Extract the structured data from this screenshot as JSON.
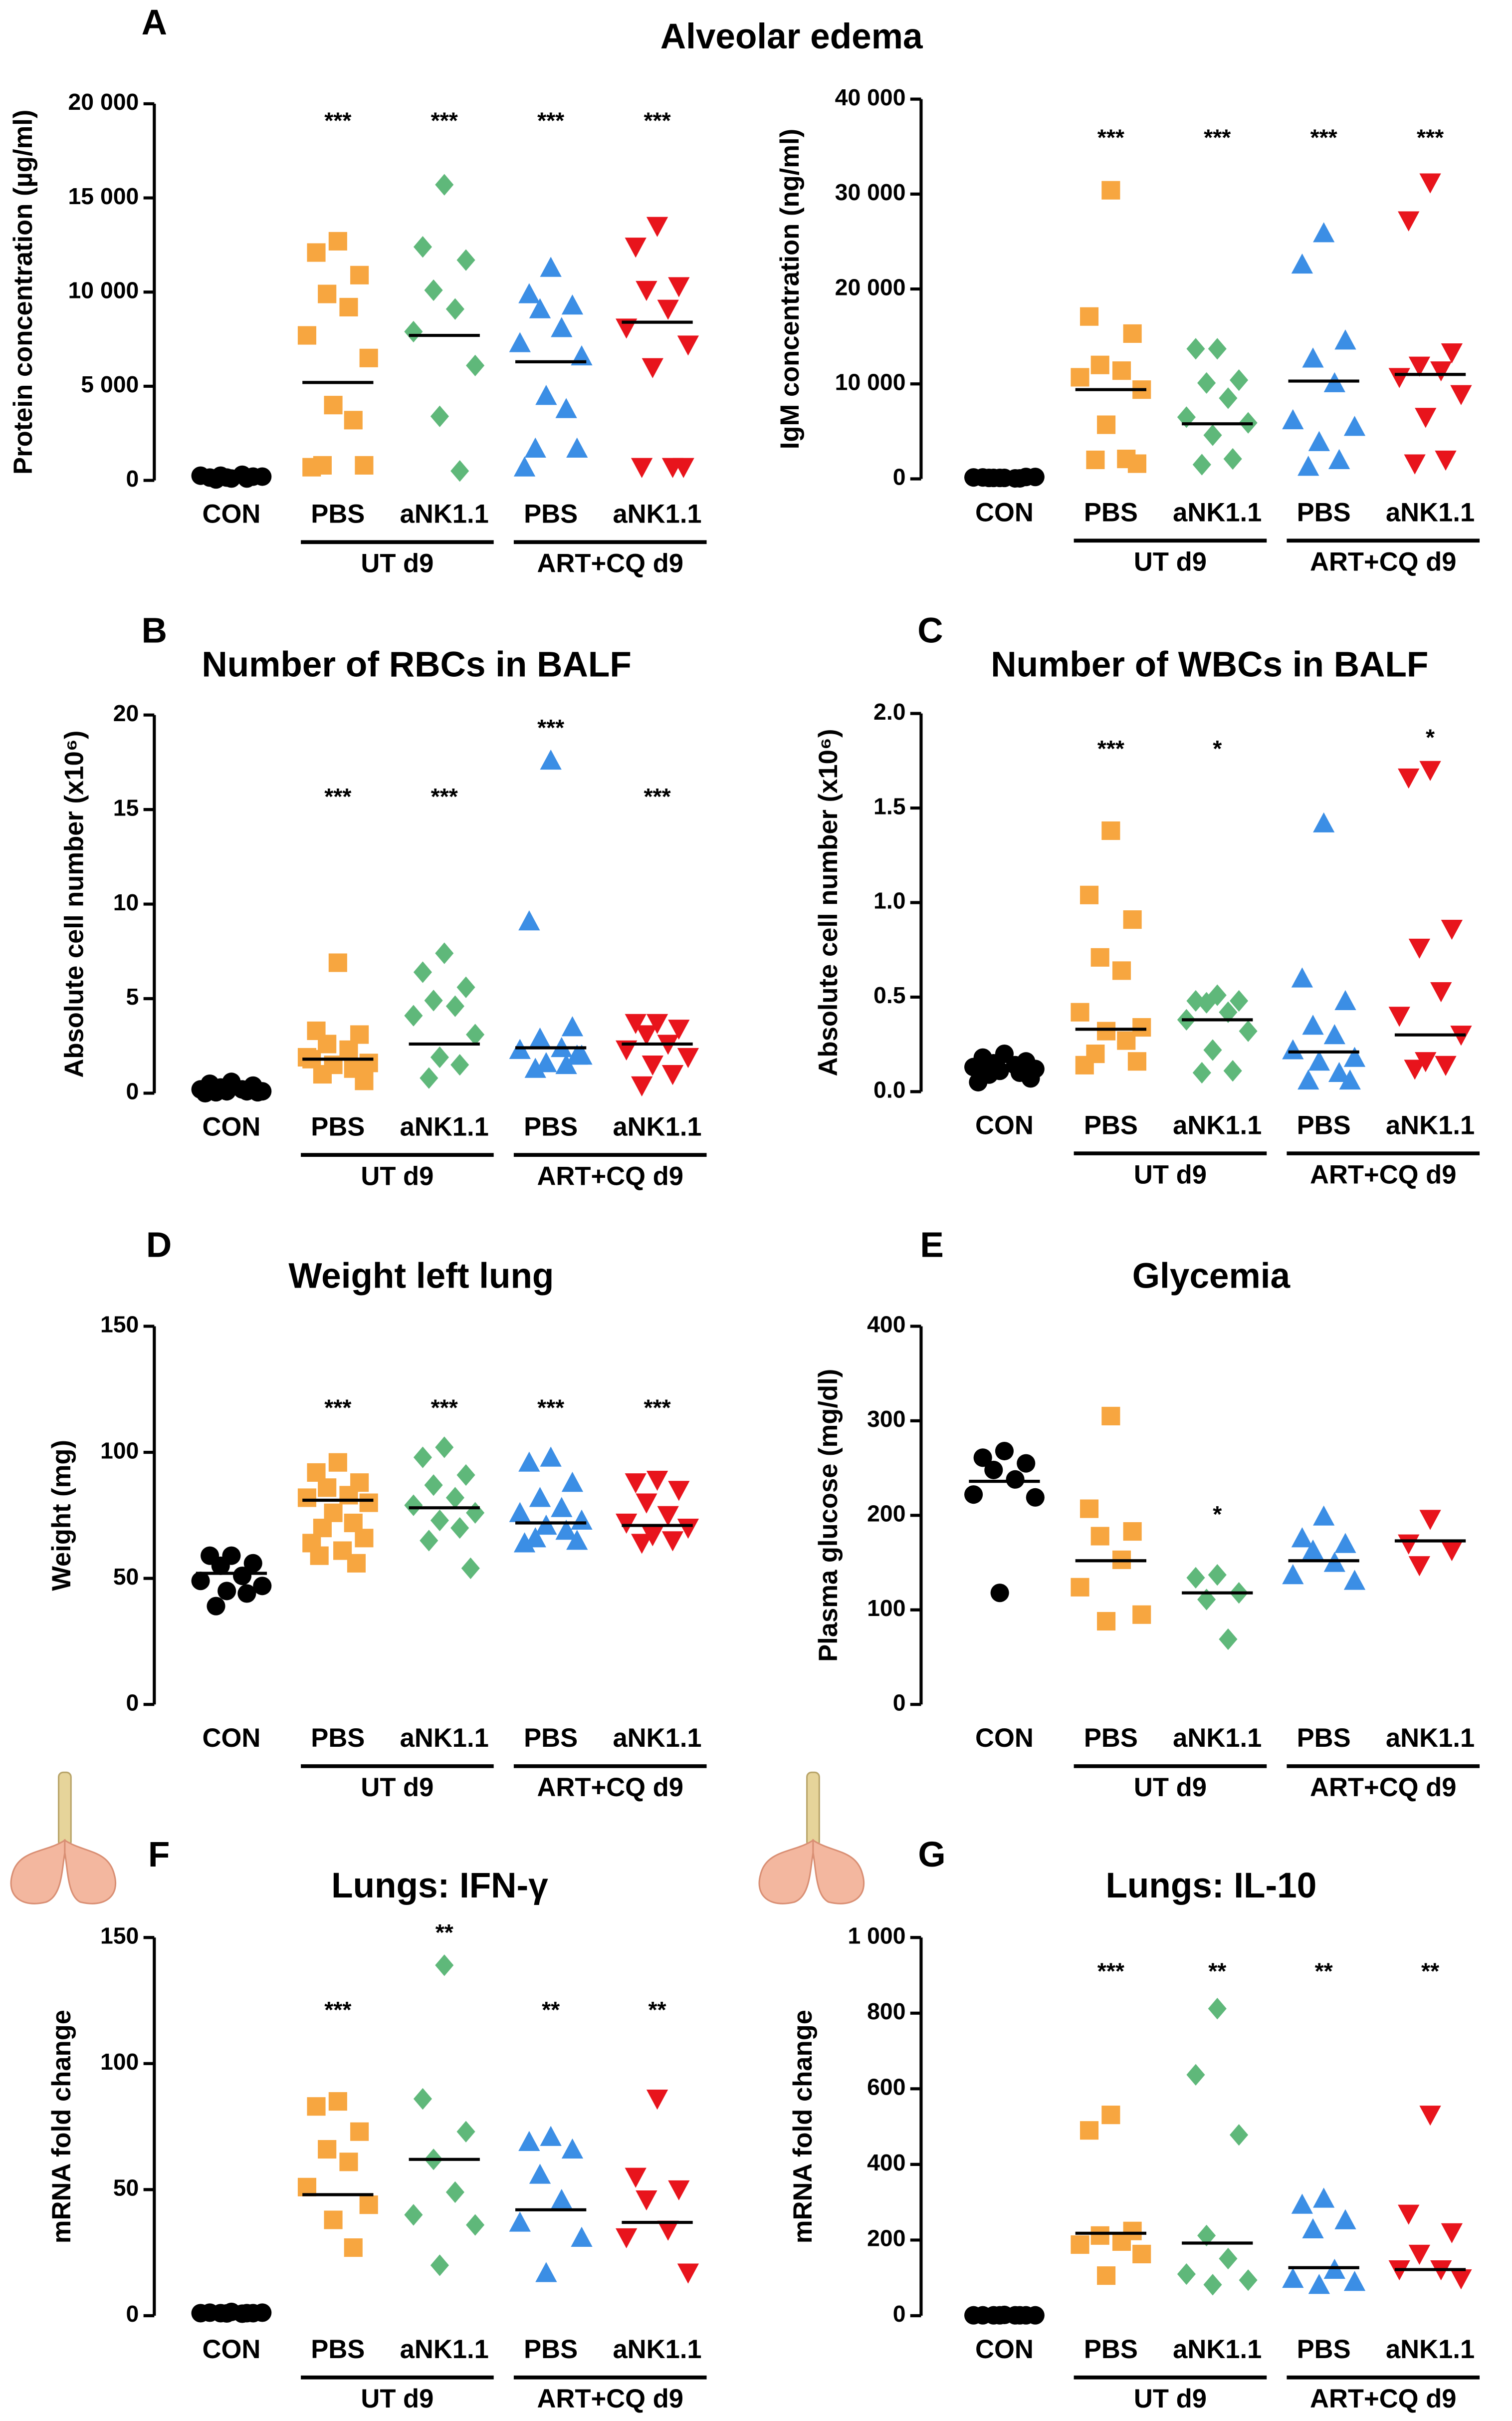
{
  "chart_data": [
    {
      "type": "dot",
      "panel": "A",
      "title": "Alveolar edema",
      "ylabel": "Protein concentration (µg/ml)",
      "categories": [
        "CON",
        "PBS",
        "aNK1.1",
        "PBS",
        "aNK1.1"
      ],
      "groups": [
        "UT d9",
        "ART+CQ d9"
      ],
      "colors": [
        "#000000",
        "#f7a640",
        "#5fb87a",
        "#3b8ee5",
        "#e8141c"
      ],
      "markers": [
        "circle",
        "square",
        "diamond",
        "triangle",
        "triangle-down"
      ],
      "values": [
        [
          100,
          150,
          200,
          250,
          300,
          250,
          200,
          150,
          100,
          50
        ],
        [
          12700,
          12100,
          10900,
          9900,
          9200,
          7700,
          6500,
          4000,
          3200,
          800,
          800,
          700
        ],
        [
          15700,
          12400,
          11700,
          10100,
          9100,
          7900,
          6100,
          3400,
          500
        ],
        [
          11300,
          9900,
          9300,
          9100,
          8100,
          7300,
          6600,
          4500,
          3800,
          1700,
          1700,
          700
        ],
        [
          13500,
          12400,
          10300,
          10100,
          9100,
          8100,
          7200,
          6000,
          700,
          700,
          700
        ]
      ],
      "medians": [
        250,
        5200,
        7700,
        6300,
        8400
      ],
      "significance": [
        null,
        "***",
        "***",
        "***",
        "***"
      ],
      "ylim": [
        0,
        20000
      ],
      "yticks": [
        0,
        {
          "value": 5000,
          "label": "5 000"
        },
        {
          "value": 10000,
          "label": "10 000"
        },
        {
          "value": 15000,
          "label": "15 000"
        },
        {
          "value": 20000,
          "label": "20 000"
        }
      ]
    },
    {
      "type": "dot",
      "ylabel": "IgM concentration (ng/ml)",
      "categories": [
        "CON",
        "PBS",
        "aNK1.1",
        "PBS",
        "aNK1.1"
      ],
      "groups": [
        "UT d9",
        "ART+CQ d9"
      ],
      "colors": [
        "#000000",
        "#f7a640",
        "#5fb87a",
        "#3b8ee5",
        "#e8141c"
      ],
      "markers": [
        "circle",
        "square",
        "diamond",
        "triangle",
        "triangle-down"
      ],
      "values": [
        [
          100,
          150,
          200,
          100,
          50,
          150,
          200,
          100,
          50,
          100
        ],
        [
          30400,
          17100,
          15300,
          12000,
          11400,
          10700,
          9400,
          5700,
          2100,
          2000,
          1600
        ],
        [
          13700,
          13700,
          10400,
          10100,
          8500,
          6500,
          5900,
          4600,
          2100,
          1500
        ],
        [
          25900,
          22600,
          14600,
          12700,
          10100,
          6200,
          5500,
          3900,
          2000,
          1300
        ],
        [
          31200,
          27200,
          13300,
          11900,
          11400,
          10700,
          8900,
          6500,
          2000,
          1600
        ]
      ],
      "medians": [
        100,
        9400,
        5800,
        10300,
        11000
      ],
      "significance": [
        null,
        "***",
        "***",
        "***",
        "***"
      ],
      "ylim": [
        0,
        40000
      ],
      "yticks": [
        0,
        {
          "value": 10000,
          "label": "10 000"
        },
        {
          "value": 20000,
          "label": "20 000"
        },
        {
          "value": 30000,
          "label": "30 000"
        },
        {
          "value": 40000,
          "label": "40 000"
        }
      ]
    },
    {
      "type": "dot",
      "panel": "B",
      "title": "Number of RBCs in BALF",
      "ylabel": "Absolute cell number (x10⁶)",
      "categories": [
        "CON",
        "PBS",
        "aNK1.1",
        "PBS",
        "aNK1.1"
      ],
      "groups": [
        "UT d9",
        "ART+CQ d9"
      ],
      "colors": [
        "#000000",
        "#f7a640",
        "#5fb87a",
        "#3b8ee5",
        "#e8141c"
      ],
      "markers": [
        "circle",
        "square",
        "diamond",
        "triangle",
        "triangle-down"
      ],
      "values": [
        [
          0.6,
          0.5,
          0.4,
          0.3,
          0.2,
          0.2,
          0.1,
          0.1,
          0.1,
          0.05,
          0.05,
          0
        ],
        [
          6.9,
          3.3,
          3.1,
          2.6,
          2.3,
          1.9,
          1.6,
          1.5,
          1.3,
          1.0,
          0.65,
          1.8
        ],
        [
          7.4,
          6.4,
          5.6,
          4.9,
          4.6,
          4.1,
          3.1,
          1.9,
          1.5,
          0.8
        ],
        [
          17.6,
          9.1,
          3.5,
          2.9,
          2.4,
          2.3,
          2.0,
          1.6,
          1.5,
          1.3,
          2.0
        ],
        [
          3.7,
          3.7,
          3.4,
          3.1,
          2.6,
          2.3,
          1.9,
          1.5,
          1.0,
          0.4
        ]
      ],
      "medians": [
        0.2,
        1.8,
        2.6,
        2.4,
        2.6
      ],
      "significance": [
        null,
        "***",
        "***",
        "***",
        "***"
      ],
      "ylim": [
        0,
        20
      ],
      "yticks": [
        0,
        5,
        10,
        15,
        20
      ]
    },
    {
      "type": "dot",
      "panel": "C",
      "title": "Number of WBCs in BALF",
      "ylabel": "Absolute cell number (x10⁶)",
      "categories": [
        "CON",
        "PBS",
        "aNK1.1",
        "PBS",
        "aNK1.1"
      ],
      "groups": [
        "UT d9",
        "ART+CQ d9"
      ],
      "colors": [
        "#000000",
        "#f7a640",
        "#5fb87a",
        "#3b8ee5",
        "#e8141c"
      ],
      "markers": [
        "circle",
        "square",
        "diamond",
        "triangle",
        "triangle-down"
      ],
      "values": [
        [
          0.2,
          0.18,
          0.16,
          0.15,
          0.14,
          0.13,
          0.12,
          0.11,
          0.1,
          0.09,
          0.07,
          0.05
        ],
        [
          1.38,
          1.04,
          0.91,
          0.71,
          0.64,
          0.42,
          0.34,
          0.32,
          0.27,
          0.2,
          0.16,
          0.14
        ],
        [
          0.51,
          0.48,
          0.48,
          0.47,
          0.42,
          0.38,
          0.32,
          0.22,
          0.11,
          0.1
        ],
        [
          1.42,
          0.6,
          0.48,
          0.35,
          0.3,
          0.22,
          0.18,
          0.16,
          0.1,
          0.06,
          0.06
        ],
        [
          1.7,
          1.66,
          0.86,
          0.76,
          0.53,
          0.4,
          0.3,
          0.16,
          0.14,
          0.12
        ]
      ],
      "medians": [
        0.13,
        0.33,
        0.38,
        0.21,
        0.3
      ],
      "significance": [
        null,
        "***",
        "*",
        null,
        "*"
      ],
      "ylim": [
        0,
        2
      ],
      "yticks": [
        {
          "value": 0,
          "label": "0.0"
        },
        0.5,
        {
          "value": 1,
          "label": "1.0"
        },
        1.5,
        {
          "value": 2,
          "label": "2.0"
        }
      ]
    },
    {
      "type": "dot",
      "panel": "D",
      "title": "Weight left lung",
      "ylabel": "Weight (mg)",
      "categories": [
        "CON",
        "PBS",
        "aNK1.1",
        "PBS",
        "aNK1.1"
      ],
      "groups": [
        "UT d9",
        "ART+CQ d9"
      ],
      "colors": [
        "#000000",
        "#f7a640",
        "#5fb87a",
        "#3b8ee5",
        "#e8141c"
      ],
      "markers": [
        "circle",
        "square",
        "diamond",
        "triangle",
        "triangle-down"
      ],
      "values": [
        [
          59,
          59,
          56,
          55,
          51,
          49,
          47,
          45,
          44,
          39
        ],
        [
          96,
          92,
          88,
          86,
          83,
          82,
          80,
          76,
          72,
          70,
          66,
          64,
          61,
          59,
          56
        ],
        [
          102,
          98,
          91,
          87,
          82,
          79,
          76,
          73,
          70,
          65,
          54
        ],
        [
          98,
          96,
          88,
          82,
          78,
          76,
          73,
          71,
          69,
          66,
          65,
          64
        ],
        [
          89,
          88,
          85,
          80,
          75,
          72,
          70,
          67,
          65,
          64
        ]
      ],
      "medians": [
        52,
        81,
        78,
        72,
        71
      ],
      "significance": [
        null,
        "***",
        "***",
        "***",
        "***"
      ],
      "ylim": [
        0,
        150
      ],
      "yticks": [
        0,
        50,
        100,
        150
      ]
    },
    {
      "type": "dot",
      "panel": "E",
      "title": "Glycemia",
      "ylabel": "Plasma glucose (mg/dl)",
      "categories": [
        "CON",
        "PBS",
        "aNK1.1",
        "PBS",
        "aNK1.1"
      ],
      "groups": [
        "UT d9",
        "ART+CQ d9"
      ],
      "colors": [
        "#000000",
        "#f7a640",
        "#5fb87a",
        "#3b8ee5",
        "#e8141c"
      ],
      "markers": [
        "circle",
        "square",
        "diamond",
        "triangle",
        "triangle-down"
      ],
      "values": [
        [
          268,
          261,
          255,
          248,
          238,
          222,
          219,
          118
        ],
        [
          305,
          207,
          183,
          178,
          153,
          124,
          95,
          88
        ],
        [
          137,
          134,
          118,
          111,
          69
        ],
        [
          199,
          176,
          170,
          163,
          150,
          137,
          131
        ],
        [
          196,
          170,
          163,
          147
        ]
      ],
      "medians": [
        236,
        152,
        118,
        152,
        173
      ],
      "significance": [
        null,
        null,
        "*",
        null,
        null
      ],
      "ylim": [
        0,
        400
      ],
      "yticks": [
        0,
        100,
        200,
        300,
        400
      ]
    },
    {
      "type": "dot",
      "panel": "F",
      "title": "Lungs: IFN-γ",
      "ylabel": "mRNA fold change",
      "categories": [
        "CON",
        "PBS",
        "aNK1.1",
        "PBS",
        "aNK1.1"
      ],
      "groups": [
        "UT d9",
        "ART+CQ d9"
      ],
      "colors": [
        "#000000",
        "#f7a640",
        "#5fb87a",
        "#3b8ee5",
        "#e8141c"
      ],
      "markers": [
        "circle",
        "square",
        "diamond",
        "triangle",
        "triangle-down"
      ],
      "values": [
        [
          1.5,
          1.2,
          1,
          1,
          0.8,
          1,
          1.2,
          0.9,
          1
        ],
        [
          85,
          83,
          73,
          66,
          61,
          51,
          44,
          38,
          27
        ],
        [
          139,
          86,
          73,
          62,
          49,
          40,
          36,
          20
        ],
        [
          71,
          69,
          66,
          56,
          46,
          37,
          31,
          17
        ],
        [
          86,
          55,
          50,
          46,
          34,
          31,
          17
        ]
      ],
      "medians": [
        1,
        48,
        62,
        42,
        37
      ],
      "significance": [
        null,
        "***",
        "**",
        "**",
        "**"
      ],
      "ylim": [
        0,
        150
      ],
      "yticks": [
        0,
        50,
        100,
        150
      ]
    },
    {
      "type": "dot",
      "panel": "G",
      "title": "Lungs: IL-10",
      "ylabel": "mRNA fold change",
      "categories": [
        "CON",
        "PBS",
        "aNK1.1",
        "PBS",
        "aNK1.1"
      ],
      "groups": [
        "UT d9",
        "ART+CQ d9"
      ],
      "colors": [
        "#000000",
        "#f7a640",
        "#5fb87a",
        "#3b8ee5",
        "#e8141c"
      ],
      "markers": [
        "circle",
        "square",
        "diamond",
        "triangle",
        "triangle-down"
      ],
      "values": [
        [
          2,
          1,
          1,
          1,
          1,
          1,
          1,
          1,
          1
        ],
        [
          531,
          490,
          224,
          212,
          196,
          188,
          163,
          106
        ],
        [
          812,
          637,
          478,
          212,
          151,
          110,
          94,
          82
        ],
        [
          310,
          294,
          253,
          229,
          122,
          98,
          90,
          82
        ],
        [
          531,
          269,
          220,
          163,
          122,
          122,
          98
        ]
      ],
      "medians": [
        1,
        218,
        192,
        127,
        122
      ],
      "significance": [
        null,
        "***",
        "**",
        "**",
        "**"
      ],
      "ylim": [
        0,
        1000
      ],
      "yticks": [
        0,
        200,
        400,
        600,
        800,
        {
          "value": 1000,
          "label": "1 000"
        }
      ]
    }
  ]
}
